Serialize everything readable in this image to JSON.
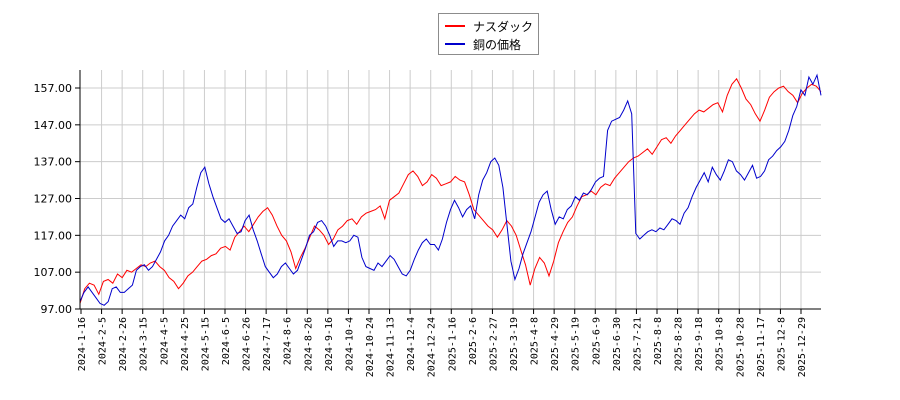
{
  "chart_data": {
    "type": "line",
    "title": "",
    "xlabel": "",
    "ylabel": "",
    "ylim": [
      97,
      162
    ],
    "grid": true,
    "legend_position": "top-center",
    "yticks": [
      "97.00",
      "107.00",
      "117.00",
      "127.00",
      "137.00",
      "147.00",
      "157.00"
    ],
    "ytick_values": [
      97,
      107,
      117,
      127,
      137,
      147,
      157
    ],
    "categories": [
      "2024-1-16",
      "2024-2-5",
      "2024-2-26",
      "2024-3-15",
      "2024-4-5",
      "2024-4-25",
      "2024-5-15",
      "2024-6-5",
      "2024-6-26",
      "2024-7-17",
      "2024-8-6",
      "2024-8-26",
      "2024-9-16",
      "2024-10-4",
      "2024-10-24",
      "2024-11-13",
      "2024-12-4",
      "2024-12-24",
      "2025-1-16",
      "2025-2-6",
      "2025-2-27",
      "2025-3-19",
      "2025-4-8",
      "2025-4-29",
      "2025-5-19",
      "2025-6-9",
      "2025-6-30",
      "2025-7-21",
      "2025-8-8",
      "2025-8-28",
      "2025-9-18",
      "2025-10-8",
      "2025-10-28",
      "2025-11-17",
      "2025-12-8",
      "2025-12-29"
    ],
    "series": [
      {
        "name": "ナスダック",
        "color": "#ff0000",
        "values": [
          98.5,
          102.5,
          104.0,
          103.5,
          101.0,
          104.5,
          105.0,
          104.0,
          106.5,
          105.5,
          107.5,
          107.0,
          108.0,
          109.0,
          108.5,
          109.5,
          110.0,
          108.5,
          107.5,
          105.5,
          104.5,
          102.5,
          104.0,
          106.0,
          107.0,
          108.5,
          110.0,
          110.5,
          111.5,
          112.0,
          113.5,
          114.0,
          113.0,
          116.5,
          118.0,
          119.5,
          118.0,
          120.0,
          122.0,
          123.5,
          124.5,
          122.5,
          119.5,
          117.0,
          115.5,
          112.5,
          108.0,
          111.0,
          113.5,
          116.5,
          119.5,
          118.5,
          117.0,
          114.5,
          116.0,
          118.5,
          119.5,
          121.0,
          121.5,
          120.0,
          122.0,
          123.0,
          123.5,
          124.0,
          125.0,
          121.5,
          126.5,
          127.5,
          128.5,
          131.0,
          133.5,
          134.5,
          133.0,
          130.5,
          131.5,
          133.5,
          132.5,
          130.5,
          131.0,
          131.5,
          133.0,
          132.0,
          131.5,
          128.0,
          124.0,
          122.5,
          121.0,
          119.5,
          118.5,
          116.5,
          118.5,
          121.0,
          119.5,
          117.0,
          113.0,
          109.0,
          103.5,
          108.0,
          111.0,
          109.5,
          106.0,
          110.0,
          115.0,
          118.0,
          120.5,
          122.0,
          125.0,
          127.5,
          128.0,
          129.0,
          128.0,
          130.0,
          131.0,
          130.5,
          132.5,
          134.0,
          135.5,
          137.0,
          138.0,
          138.5,
          139.5,
          140.5,
          139.0,
          141.0,
          143.0,
          143.5,
          142.0,
          144.0,
          145.5,
          147.0,
          148.5,
          150.0,
          151.0,
          150.5,
          151.5,
          152.5,
          153.0,
          150.5,
          155.0,
          158.0,
          159.5,
          157.0,
          154.0,
          152.5,
          150.0,
          148.0,
          151.0,
          154.5,
          156.0,
          157.0,
          157.5,
          156.0,
          155.0,
          153.0,
          155.5,
          157.0,
          158.0,
          157.5,
          156.0
        ]
      },
      {
        "name": "銅の価格",
        "color": "#0000cc",
        "values": [
          99.0,
          101.5,
          103.0,
          101.5,
          100.0,
          98.5,
          98.0,
          99.0,
          102.5,
          103.0,
          101.5,
          101.5,
          102.5,
          103.5,
          107.5,
          108.5,
          109.0,
          107.5,
          108.5,
          110.5,
          112.5,
          115.5,
          117.0,
          119.5,
          121.0,
          122.5,
          121.5,
          124.5,
          125.5,
          130.0,
          134.0,
          135.5,
          131.0,
          127.5,
          124.5,
          121.5,
          120.5,
          121.5,
          119.5,
          117.5,
          118.0,
          121.0,
          122.5,
          118.5,
          115.5,
          112.0,
          108.5,
          107.0,
          105.5,
          106.5,
          108.5,
          109.5,
          108.0,
          106.5,
          107.5,
          110.5,
          113.5,
          117.0,
          118.0,
          120.5,
          121.0,
          119.5,
          117.0,
          114.0,
          115.5,
          115.5,
          115.0,
          115.5,
          117.0,
          116.5,
          111.0,
          108.5,
          108.0,
          107.5,
          109.5,
          108.5,
          110.0,
          111.5,
          110.5,
          108.5,
          106.5,
          106.0,
          107.5,
          110.5,
          113.0,
          115.0,
          116.0,
          114.5,
          114.5,
          113.0,
          116.0,
          120.5,
          124.0,
          126.5,
          124.5,
          122.0,
          124.0,
          125.0,
          121.5,
          128.0,
          132.0,
          134.0,
          137.0,
          138.0,
          136.0,
          130.0,
          120.0,
          110.0,
          105.0,
          108.0,
          112.0,
          115.0,
          118.0,
          122.0,
          126.0,
          128.0,
          129.0,
          124.0,
          120.0,
          122.0,
          121.5,
          124.0,
          125.0,
          127.5,
          126.5,
          128.5,
          128.0,
          129.5,
          131.5,
          132.5,
          133.0,
          145.5,
          148.0,
          148.5,
          149.0,
          151.0,
          153.5,
          150.0,
          117.5,
          116.0,
          117.0,
          118.0,
          118.5,
          118.0,
          119.0,
          118.5,
          120.0,
          121.5,
          121.0,
          120.0,
          123.0,
          124.5,
          127.5,
          130.0,
          132.0,
          134.0,
          131.5,
          135.5,
          133.5,
          132.0,
          134.5,
          137.5,
          137.0,
          134.5,
          133.5,
          132.0,
          134.0,
          136.0,
          132.5,
          133.0,
          134.5,
          137.5,
          138.5,
          140.0,
          141.0,
          142.5,
          145.5,
          149.5,
          152.0,
          156.5,
          155.0,
          160.0,
          158.0,
          160.5,
          155.0
        ]
      }
    ]
  },
  "legend": {
    "items": [
      {
        "label": "ナスダック",
        "color": "#ff0000"
      },
      {
        "label": "銅の価格",
        "color": "#0000cc"
      }
    ]
  }
}
